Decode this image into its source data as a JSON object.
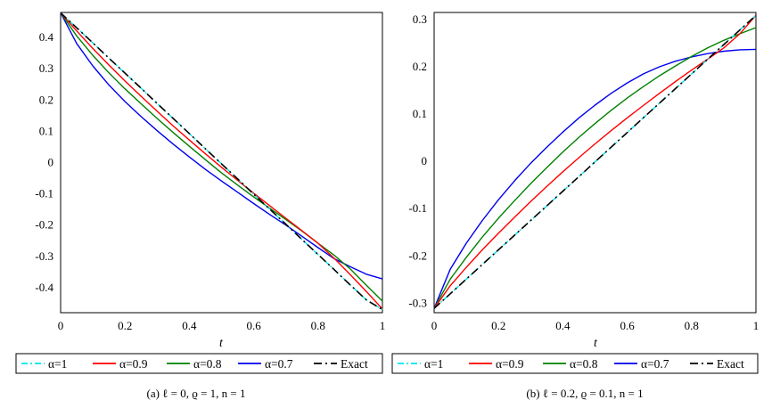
{
  "colors": {
    "alpha_1": "#00e5ee",
    "alpha_0_9": "#ff0000",
    "alpha_0_8": "#008000",
    "alpha_0_7": "#0000ee",
    "exact": "#000000"
  },
  "chart_data": [
    {
      "type": "line",
      "caption": "(a) ℓ = 0, ϱ = 1, n = 1",
      "xlabel": "t",
      "ylabel": "",
      "xlim": [
        0,
        1
      ],
      "ylim": [
        -0.48,
        0.48
      ],
      "xticks": [
        "0",
        "0.2",
        "0.4",
        "0.6",
        "0.8",
        "1"
      ],
      "yticks": [
        "0.4",
        "0.3",
        "0.2",
        "0.1",
        "0",
        "-0.1",
        "-0.2",
        "-0.3",
        "-0.4"
      ],
      "x": [
        0,
        0.05,
        0.1,
        0.15,
        0.2,
        0.25,
        0.3,
        0.35,
        0.4,
        0.45,
        0.5,
        0.55,
        0.6,
        0.65,
        0.7,
        0.75,
        0.8,
        0.85,
        0.9,
        0.95,
        1
      ],
      "legend_position": "bottom",
      "series": [
        {
          "name": "α=1",
          "color_key": "alpha_1",
          "dash": "dashdot",
          "values": [
            0.479,
            0.431,
            0.383,
            0.334,
            0.286,
            0.238,
            0.189,
            0.141,
            0.093,
            0.044,
            -0.004,
            -0.052,
            -0.101,
            -0.149,
            -0.197,
            -0.246,
            -0.294,
            -0.342,
            -0.391,
            -0.439,
            -0.47
          ]
        },
        {
          "name": "α=0.9",
          "color_key": "alpha_0_9",
          "dash": "solid",
          "values": [
            0.479,
            0.421,
            0.365,
            0.312,
            0.261,
            0.212,
            0.164,
            0.117,
            0.072,
            0.028,
            -0.015,
            -0.057,
            -0.098,
            -0.138,
            -0.178,
            -0.218,
            -0.258,
            -0.306,
            -0.358,
            -0.412,
            -0.468
          ]
        },
        {
          "name": "α=0.8",
          "color_key": "alpha_0_8",
          "dash": "solid",
          "values": [
            0.479,
            0.405,
            0.343,
            0.287,
            0.236,
            0.188,
            0.141,
            0.096,
            0.052,
            0.009,
            -0.033,
            -0.072,
            -0.11,
            -0.146,
            -0.182,
            -0.219,
            -0.258,
            -0.296,
            -0.34,
            -0.392,
            -0.443
          ]
        },
        {
          "name": "α=0.7",
          "color_key": "alpha_0_7",
          "dash": "solid",
          "values": [
            0.479,
            0.381,
            0.309,
            0.248,
            0.195,
            0.147,
            0.102,
            0.059,
            0.018,
            -0.022,
            -0.059,
            -0.095,
            -0.131,
            -0.166,
            -0.2,
            -0.236,
            -0.272,
            -0.307,
            -0.333,
            -0.357,
            -0.372
          ]
        },
        {
          "name": "Exact",
          "color_key": "exact",
          "dash": "longdashdot",
          "values": [
            0.479,
            0.431,
            0.383,
            0.334,
            0.286,
            0.238,
            0.189,
            0.141,
            0.093,
            0.044,
            -0.004,
            -0.052,
            -0.101,
            -0.149,
            -0.197,
            -0.246,
            -0.294,
            -0.342,
            -0.391,
            -0.439,
            -0.47
          ]
        }
      ]
    },
    {
      "type": "line",
      "caption": "(b) ℓ = 0.2, ϱ = 0.1, n = 1",
      "xlabel": "t",
      "ylabel": "",
      "xlim": [
        0,
        1
      ],
      "ylim": [
        -0.32,
        0.315
      ],
      "xticks": [
        "0",
        "0.2",
        "0.4",
        "0.6",
        "0.8",
        "1"
      ],
      "yticks": [
        "0.3",
        "0.2",
        "0.1",
        "0",
        "-0.1",
        "-0.2",
        "-0.3"
      ],
      "x": [
        0,
        0.05,
        0.1,
        0.15,
        0.2,
        0.25,
        0.3,
        0.35,
        0.4,
        0.45,
        0.5,
        0.55,
        0.6,
        0.65,
        0.7,
        0.75,
        0.8,
        0.85,
        0.9,
        0.95,
        1
      ],
      "legend_position": "bottom",
      "series": [
        {
          "name": "α=1",
          "color_key": "alpha_1",
          "dash": "dashdot",
          "values": [
            -0.311,
            -0.28,
            -0.249,
            -0.218,
            -0.187,
            -0.156,
            -0.125,
            -0.094,
            -0.063,
            -0.032,
            -0.001,
            0.03,
            0.061,
            0.092,
            0.123,
            0.154,
            0.185,
            0.216,
            0.247,
            0.278,
            0.309
          ]
        },
        {
          "name": "α=0.9",
          "color_key": "alpha_0_9",
          "dash": "solid",
          "values": [
            -0.311,
            -0.263,
            -0.224,
            -0.187,
            -0.152,
            -0.118,
            -0.085,
            -0.053,
            -0.022,
            0.008,
            0.037,
            0.065,
            0.092,
            0.118,
            0.144,
            0.169,
            0.193,
            0.216,
            0.24,
            0.27,
            0.309
          ]
        },
        {
          "name": "α=0.8",
          "color_key": "alpha_0_8",
          "dash": "solid",
          "values": [
            -0.311,
            -0.249,
            -0.203,
            -0.16,
            -0.12,
            -0.083,
            -0.047,
            -0.013,
            0.02,
            0.051,
            0.08,
            0.108,
            0.134,
            0.158,
            0.181,
            0.202,
            0.222,
            0.24,
            0.256,
            0.27,
            0.283
          ]
        },
        {
          "name": "α=0.7",
          "color_key": "alpha_0_7",
          "dash": "solid",
          "values": [
            -0.311,
            -0.228,
            -0.173,
            -0.125,
            -0.081,
            -0.041,
            -0.004,
            0.03,
            0.062,
            0.092,
            0.119,
            0.144,
            0.166,
            0.185,
            0.2,
            0.212,
            0.221,
            0.228,
            0.233,
            0.236,
            0.237
          ]
        },
        {
          "name": "Exact",
          "color_key": "exact",
          "dash": "longdashdot",
          "values": [
            -0.311,
            -0.28,
            -0.249,
            -0.218,
            -0.187,
            -0.156,
            -0.125,
            -0.094,
            -0.063,
            -0.032,
            -0.001,
            0.03,
            0.061,
            0.092,
            0.123,
            0.154,
            0.185,
            0.216,
            0.247,
            0.278,
            0.309
          ]
        }
      ]
    }
  ]
}
